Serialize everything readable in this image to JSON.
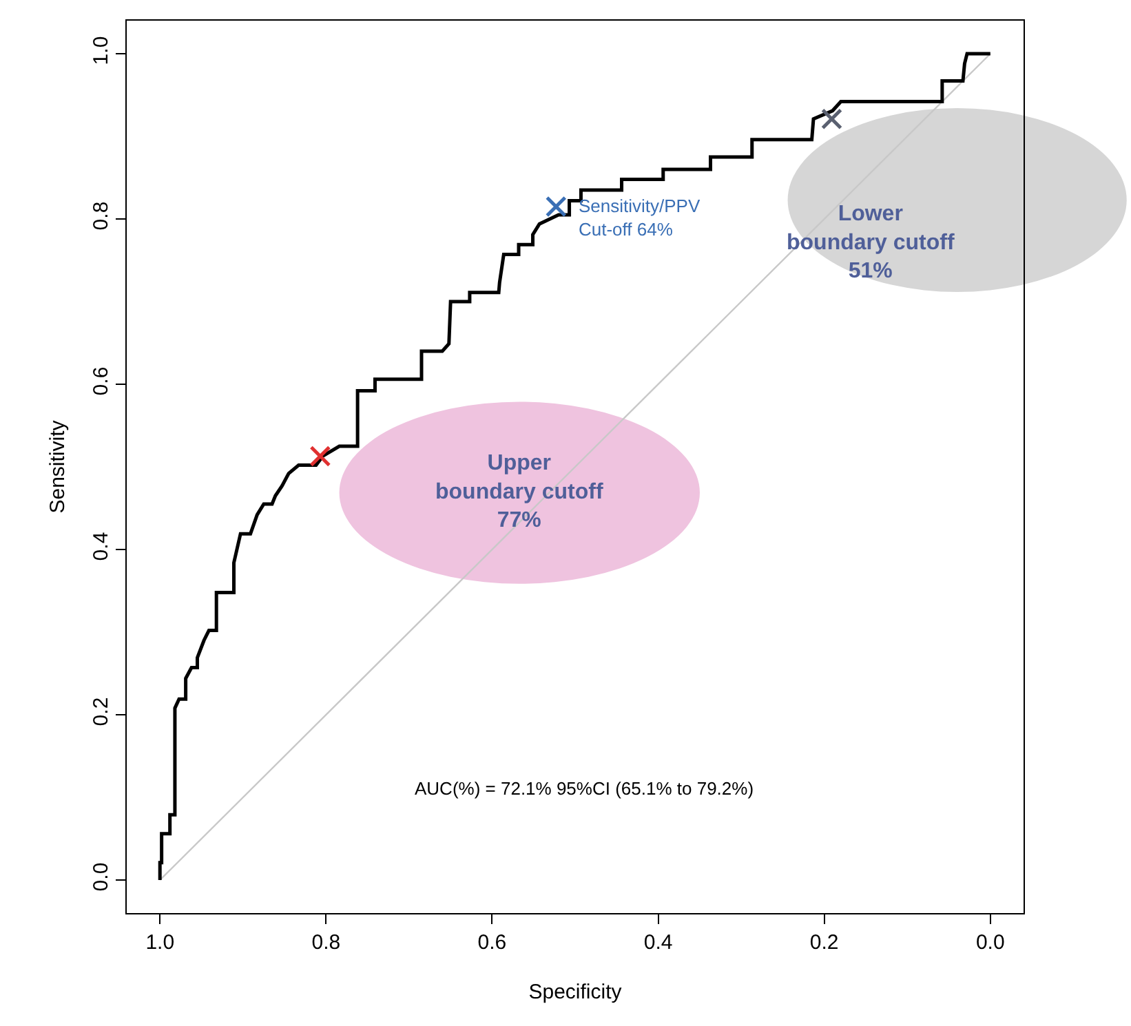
{
  "chart_data": {
    "type": "line",
    "xlabel": "Specificity",
    "ylabel": "Sensitivity",
    "xlim": [
      1.04,
      -0.04
    ],
    "ylim": [
      -0.04,
      1.04
    ],
    "xticks": [
      {
        "value": 1.0,
        "label": "1.0"
      },
      {
        "value": 0.8,
        "label": "0.8"
      },
      {
        "value": 0.6,
        "label": "0.6"
      },
      {
        "value": 0.4,
        "label": "0.4"
      },
      {
        "value": 0.2,
        "label": "0.2"
      },
      {
        "value": 0.0,
        "label": "0.0"
      }
    ],
    "yticks": [
      {
        "value": 0.0,
        "label": "0.0"
      },
      {
        "value": 0.2,
        "label": "0.2"
      },
      {
        "value": 0.4,
        "label": "0.4"
      },
      {
        "value": 0.6,
        "label": "0.6"
      },
      {
        "value": 0.8,
        "label": "0.8"
      },
      {
        "value": 1.0,
        "label": "1.0"
      }
    ],
    "grid": false,
    "marker": "none",
    "line_style": "solid",
    "series": [
      {
        "color": "#c8c8c8",
        "x": [
          1.0,
          0.0
        ],
        "values": [
          0.0,
          1.0
        ]
      },
      {
        "color": "#000000",
        "x": [
          1.0,
          1.0,
          0.998,
          0.998,
          0.988,
          0.988,
          0.982,
          0.982,
          0.977,
          0.969,
          0.969,
          0.962,
          0.955,
          0.955,
          0.947,
          0.941,
          0.932,
          0.932,
          0.911,
          0.911,
          0.903,
          0.891,
          0.883,
          0.875,
          0.865,
          0.861,
          0.853,
          0.845,
          0.833,
          0.812,
          0.804,
          0.784,
          0.762,
          0.762,
          0.741,
          0.741,
          0.685,
          0.685,
          0.66,
          0.652,
          0.65,
          0.627,
          0.627,
          0.592,
          0.591,
          0.586,
          0.568,
          0.568,
          0.551,
          0.551,
          0.543,
          0.52,
          0.507,
          0.507,
          0.493,
          0.493,
          0.444,
          0.444,
          0.394,
          0.394,
          0.337,
          0.337,
          0.287,
          0.287,
          0.215,
          0.213,
          0.19,
          0.18,
          0.058,
          0.058,
          0.033,
          0.031,
          0.028,
          0.0
        ],
        "values": [
          0.0,
          0.021,
          0.021,
          0.056,
          0.056,
          0.079,
          0.079,
          0.208,
          0.219,
          0.219,
          0.244,
          0.257,
          0.257,
          0.269,
          0.29,
          0.302,
          0.302,
          0.348,
          0.348,
          0.384,
          0.419,
          0.419,
          0.442,
          0.455,
          0.455,
          0.465,
          0.477,
          0.492,
          0.502,
          0.502,
          0.513,
          0.525,
          0.525,
          0.592,
          0.592,
          0.606,
          0.606,
          0.64,
          0.64,
          0.649,
          0.7,
          0.7,
          0.711,
          0.711,
          0.723,
          0.757,
          0.757,
          0.769,
          0.769,
          0.781,
          0.794,
          0.805,
          0.805,
          0.822,
          0.822,
          0.835,
          0.835,
          0.848,
          0.848,
          0.86,
          0.86,
          0.875,
          0.875,
          0.896,
          0.896,
          0.921,
          0.931,
          0.942,
          0.942,
          0.967,
          0.967,
          0.988,
          1.0,
          1.0
        ]
      },
      {
        "type": "scatter",
        "marker": "cross",
        "color": "#e03030",
        "x": [
          0.807
        ],
        "values": [
          0.513
        ]
      },
      {
        "type": "scatter",
        "marker": "cross",
        "color": "#3a6fb5",
        "x": [
          0.523
        ],
        "values": [
          0.815
        ]
      },
      {
        "type": "scatter",
        "marker": "cross",
        "color": "#5a6070",
        "x": [
          0.191
        ],
        "values": [
          0.921
        ]
      }
    ],
    "annotations": [
      {
        "text": "Sensitivity/PPV\nCut-off 64%",
        "x": 0.523,
        "y": 0.815
      },
      "Upper\nboundary cutoff\n77%",
      "Lower\nboundary cutoff\n51%",
      "AUC(%) = 72.1% 95%CI (65.1% to 79.2%)"
    ]
  }
}
